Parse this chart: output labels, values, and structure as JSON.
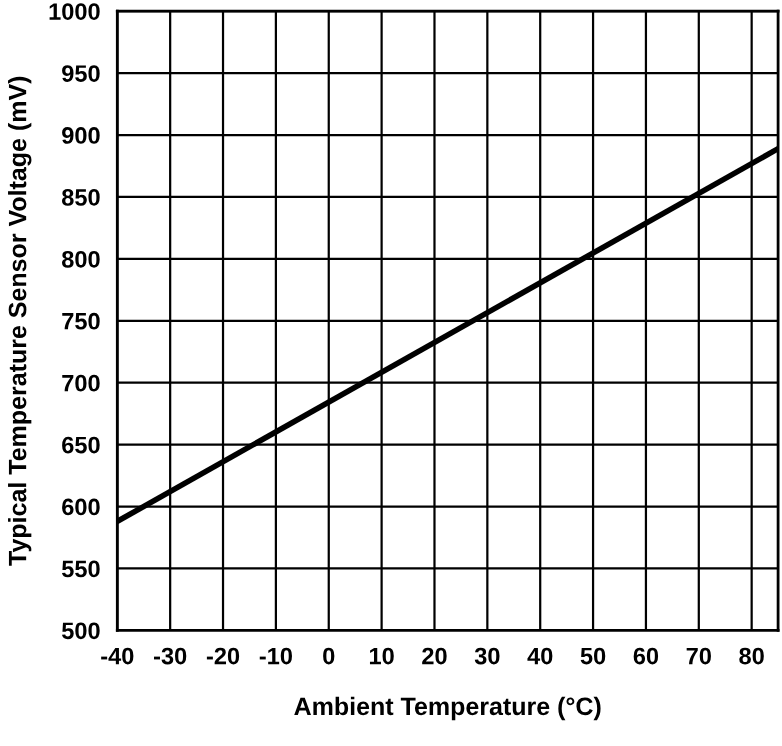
{
  "chart_data": {
    "type": "line",
    "xlabel": "Ambient Temperature (°C)",
    "ylabel": "Typical Temperature Sensor Voltage (mV)",
    "x": [
      -40,
      85
    ],
    "series": [
      {
        "color": "#000000",
        "values": [
          588,
          889
        ]
      }
    ],
    "xlim": [
      -40,
      85
    ],
    "xticks": [
      -40,
      -30,
      -20,
      -10,
      0,
      10,
      20,
      30,
      40,
      50,
      60,
      70,
      80
    ],
    "ylim": [
      500,
      1000
    ],
    "yticks": [
      500,
      550,
      600,
      650,
      700,
      750,
      800,
      850,
      900,
      950,
      1000
    ],
    "grid": true,
    "legend": false,
    "marker": "none",
    "line_style": "solid"
  }
}
